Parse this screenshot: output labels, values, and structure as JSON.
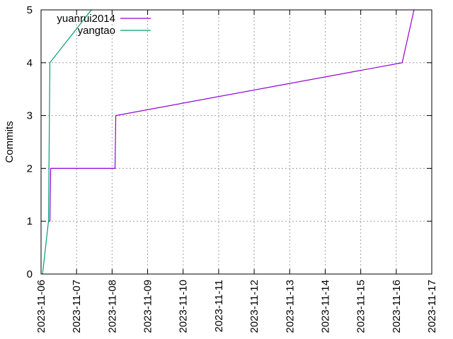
{
  "chart_data": {
    "type": "line",
    "title": "",
    "xlabel": "",
    "ylabel": "Commits",
    "x_type": "date",
    "xlim": [
      "2023-11-06",
      "2023-11-17"
    ],
    "ylim": [
      0,
      5
    ],
    "x_ticks": [
      "2023-11-06",
      "2023-11-07",
      "2023-11-08",
      "2023-11-09",
      "2023-11-10",
      "2023-11-11",
      "2023-11-12",
      "2023-11-13",
      "2023-11-14",
      "2023-11-15",
      "2023-11-16",
      "2023-11-17"
    ],
    "y_ticks": [
      0,
      1,
      2,
      3,
      4,
      5
    ],
    "grid": true,
    "legend_position": "top-left",
    "series": [
      {
        "name": "yuanrui2014",
        "color": "#9400d3",
        "points": [
          [
            "2023-11-06 05:00",
            1
          ],
          [
            "2023-11-06 06:00",
            1
          ],
          [
            "2023-11-06 06:30",
            2
          ],
          [
            "2023-11-08 02:00",
            2
          ],
          [
            "2023-11-08 02:30",
            3
          ],
          [
            "2023-11-16 04:00",
            4
          ],
          [
            "2023-11-16 12:00",
            5
          ]
        ]
      },
      {
        "name": "yangtao",
        "color": "#009e73",
        "points": [
          [
            "2023-11-06 01:00",
            0
          ],
          [
            "2023-11-06 05:00",
            1
          ],
          [
            "2023-11-06 06:00",
            4
          ],
          [
            "2023-11-07 10:00",
            5
          ]
        ]
      }
    ]
  }
}
